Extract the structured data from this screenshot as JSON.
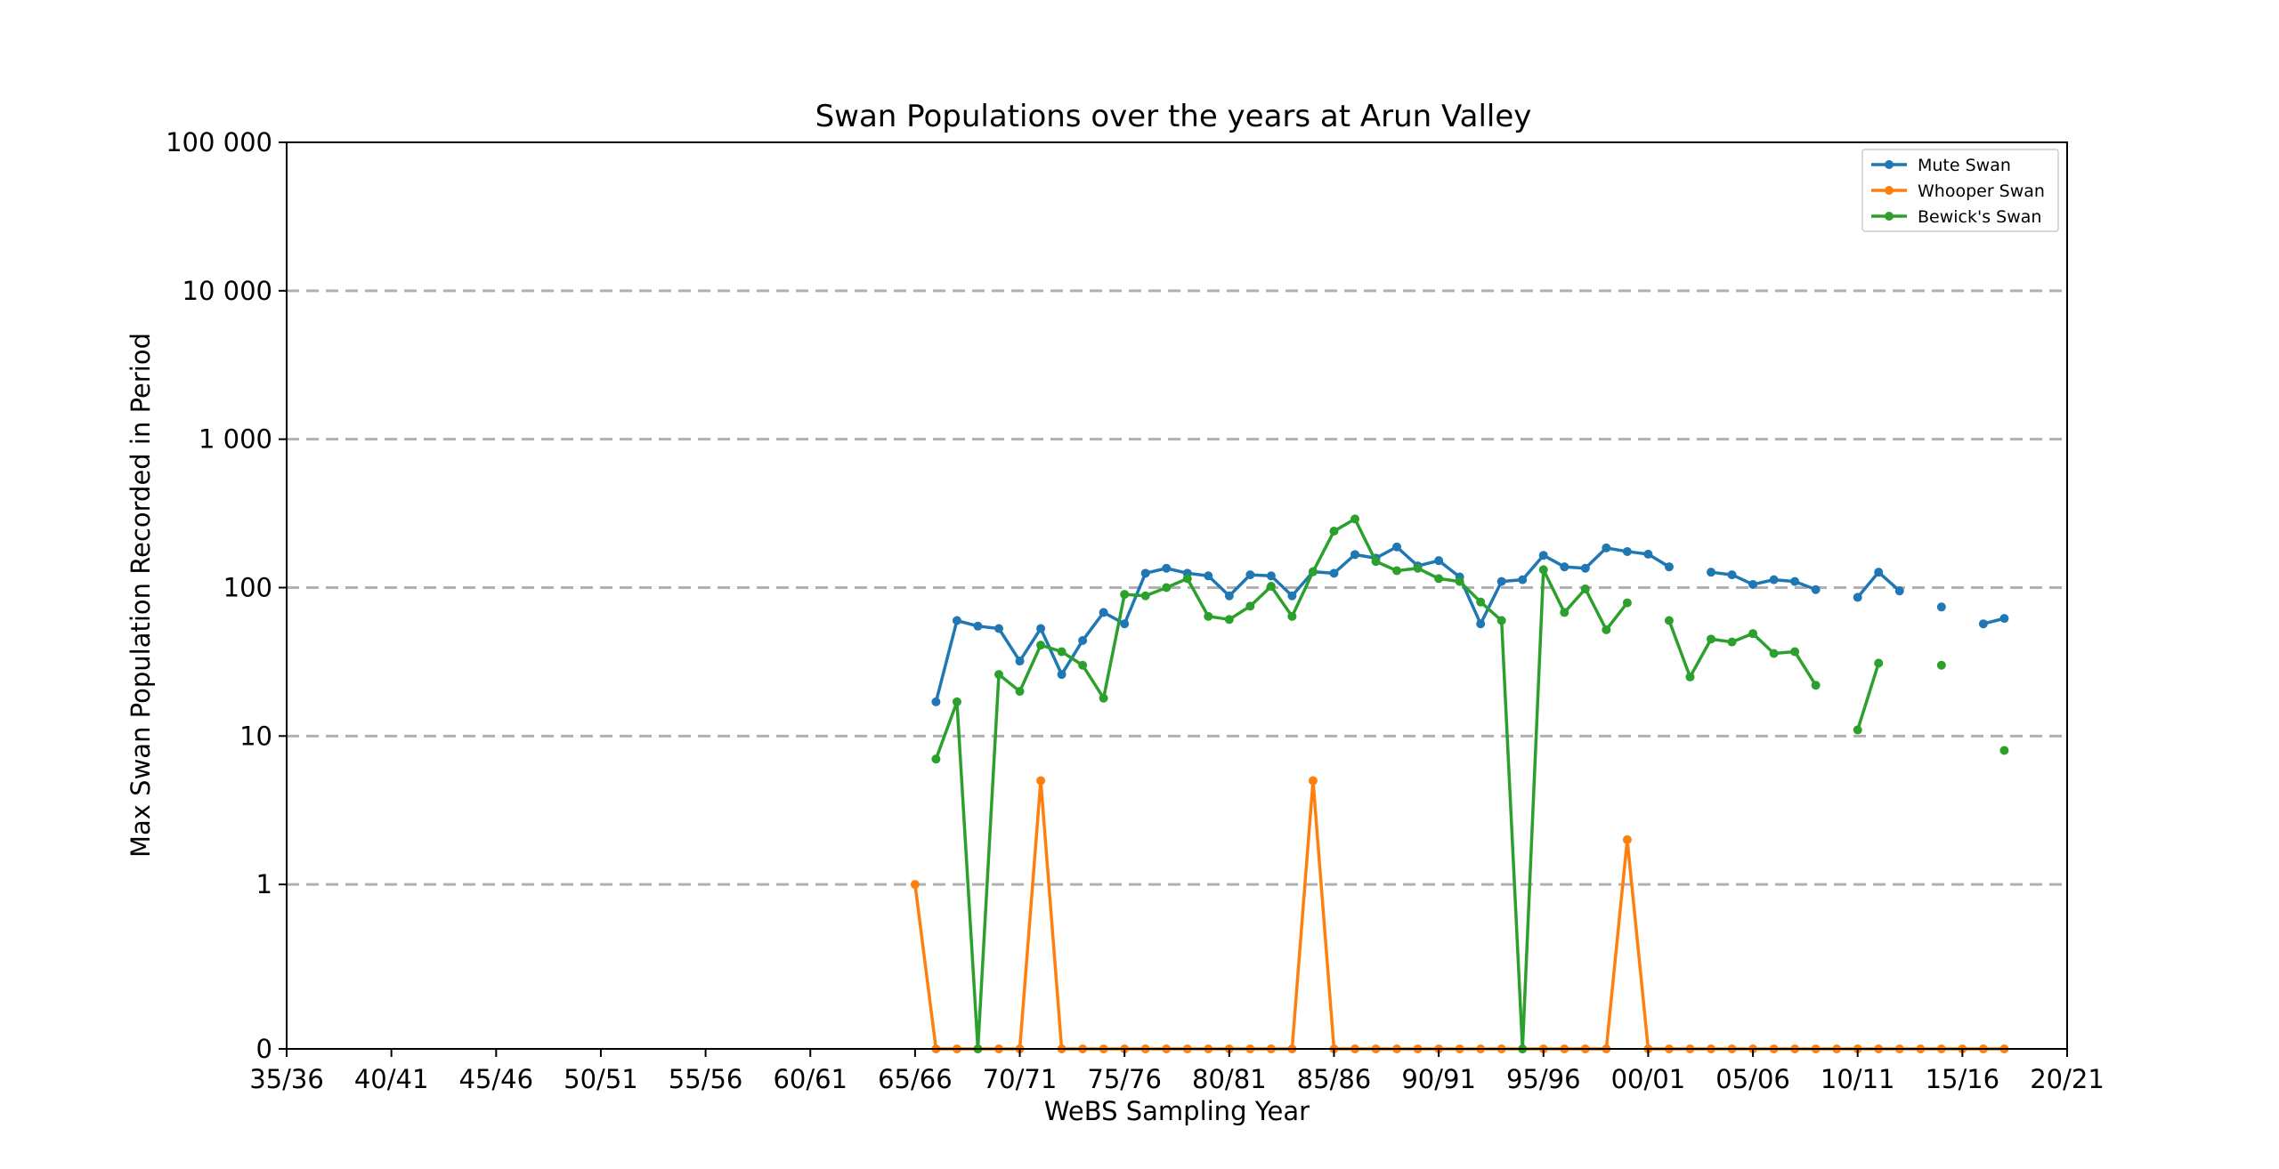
{
  "chart_data": {
    "type": "line",
    "title": "Swan Populations over the years at Arun Valley",
    "xlabel": "WeBS Sampling Year",
    "ylabel": "Max Swan Population Recorded in Period",
    "y_scale": "symlog",
    "ylim": [
      0,
      100000
    ],
    "grid": "horizontal dashed",
    "legend_position": "top-right",
    "x_ticks": [
      "35/36",
      "40/41",
      "45/46",
      "50/51",
      "55/56",
      "60/61",
      "65/66",
      "70/71",
      "75/76",
      "80/81",
      "85/86",
      "90/91",
      "95/96",
      "00/01",
      "05/06",
      "10/11",
      "15/16",
      "20/21"
    ],
    "y_ticks": [
      {
        "value": 0,
        "label": "0"
      },
      {
        "value": 1,
        "label": "1"
      },
      {
        "value": 10,
        "label": "10"
      },
      {
        "value": 100,
        "label": "100"
      },
      {
        "value": 1000,
        "label": "1 000"
      },
      {
        "value": 10000,
        "label": "10 000"
      },
      {
        "value": 100000,
        "label": "100 000"
      }
    ],
    "x": [
      "65/66",
      "66/67",
      "67/68",
      "68/69",
      "69/70",
      "70/71",
      "71/72",
      "72/73",
      "73/74",
      "74/75",
      "75/76",
      "76/77",
      "77/78",
      "78/79",
      "79/80",
      "80/81",
      "81/82",
      "82/83",
      "83/84",
      "84/85",
      "85/86",
      "86/87",
      "87/88",
      "88/89",
      "89/90",
      "90/91",
      "91/92",
      "92/93",
      "93/94",
      "94/95",
      "95/96",
      "96/97",
      "97/98",
      "98/99",
      "99/00",
      "00/01",
      "01/02",
      "02/03",
      "03/04",
      "04/05",
      "05/06",
      "06/07",
      "07/08",
      "08/09",
      "09/10",
      "10/11",
      "11/12",
      "12/13",
      "13/14",
      "14/15",
      "15/16",
      "16/17",
      "17/18"
    ],
    "series": [
      {
        "name": "Mute Swan",
        "color": "#1f77b4",
        "values": [
          null,
          17,
          60,
          55,
          53,
          32,
          53,
          26,
          44,
          68,
          57,
          125,
          135,
          125,
          120,
          88,
          122,
          120,
          88,
          128,
          125,
          167,
          158,
          188,
          140,
          152,
          118,
          57,
          110,
          113,
          165,
          138,
          135,
          185,
          175,
          168,
          138,
          null,
          127,
          122,
          105,
          113,
          110,
          97,
          null,
          86,
          127,
          95,
          null,
          74,
          null,
          57,
          62
        ]
      },
      {
        "name": "Whooper Swan",
        "color": "#ff7f0e",
        "values": [
          1,
          0,
          0,
          0,
          0,
          0,
          5,
          0,
          0,
          0,
          0,
          0,
          0,
          0,
          0,
          0,
          0,
          0,
          0,
          5,
          0,
          0,
          0,
          0,
          0,
          0,
          0,
          0,
          0,
          0,
          0,
          0,
          0,
          0,
          2,
          0,
          0,
          0,
          0,
          0,
          0,
          0,
          0,
          0,
          0,
          0,
          0,
          0,
          0,
          0,
          0,
          0,
          0
        ]
      },
      {
        "name": "Bewick's Swan",
        "color": "#2ca02c",
        "values": [
          null,
          7,
          17,
          0,
          26,
          20,
          41,
          37,
          30,
          18,
          90,
          88,
          100,
          115,
          64,
          61,
          75,
          102,
          64,
          128,
          240,
          290,
          150,
          130,
          135,
          115,
          110,
          80,
          60,
          0,
          132,
          68,
          98,
          52,
          79,
          null,
          60,
          25,
          45,
          43,
          49,
          36,
          37,
          22,
          null,
          11,
          31,
          null,
          null,
          30,
          null,
          null,
          8
        ]
      }
    ]
  }
}
